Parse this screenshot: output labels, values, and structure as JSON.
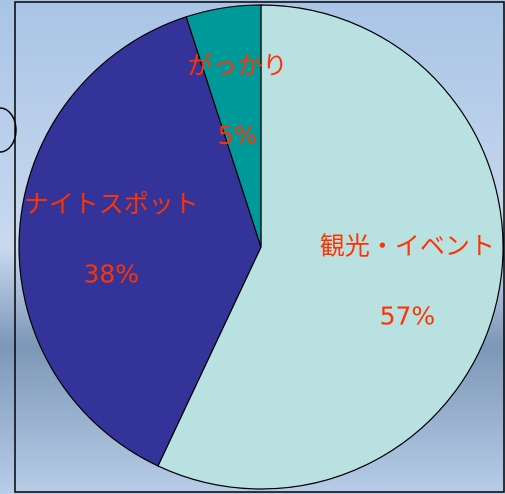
{
  "chart_data": {
    "type": "pie",
    "categories": [
      "観光・イベント",
      "ナイトスポット",
      "がっかり"
    ],
    "values": [
      57,
      38,
      5
    ],
    "value_labels": [
      "57%",
      "38%",
      "5%"
    ],
    "colors": [
      "#b9e1e1",
      "#333399",
      "#009999"
    ],
    "label_color": "#ff3300"
  }
}
